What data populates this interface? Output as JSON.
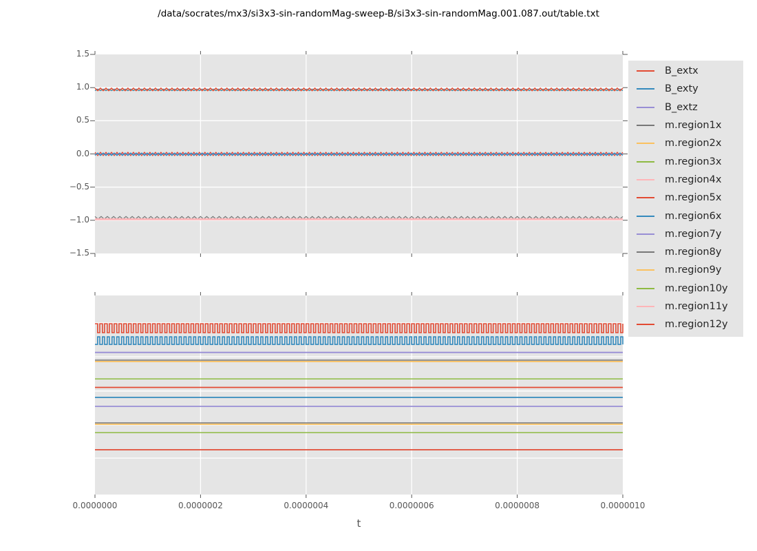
{
  "figure": {
    "title": "/data/socrates/mx3/si3x3-sin-randomMag-sweep-B/si3x3-sin-randomMag.001.087.out/table.txt",
    "background_color": "#ffffff",
    "axes_background_color": "#e5e5e5",
    "grid_color": "#ffffff",
    "tick_color": "#555555",
    "tick_label_color": "#555555",
    "legend_background_color": "#e5e5e5"
  },
  "axes": {
    "xlabel": "t",
    "x_tick_labels": [
      "0.0000000",
      "0.0000002",
      "0.0000004",
      "0.0000006",
      "0.0000008",
      "0.0000010"
    ],
    "top_y_tick_labels": [
      "1.5",
      "1.0",
      "0.5",
      "0.0",
      "−0.5",
      "−1.0",
      "−1.5"
    ],
    "bottom_y_tick_labels": []
  },
  "legend": {
    "entries": [
      {
        "label": "B_extx",
        "color": "#E24A33"
      },
      {
        "label": "B_exty",
        "color": "#348ABD"
      },
      {
        "label": "B_extz",
        "color": "#988ED5"
      },
      {
        "label": "m.region1x",
        "color": "#777777"
      },
      {
        "label": "m.region2x",
        "color": "#FBC15E"
      },
      {
        "label": "m.region3x",
        "color": "#8EBA42"
      },
      {
        "label": "m.region4x",
        "color": "#FFB5B8"
      },
      {
        "label": "m.region5x",
        "color": "#E24A33"
      },
      {
        "label": "m.region6x",
        "color": "#348ABD"
      },
      {
        "label": "m.region7y",
        "color": "#988ED5"
      },
      {
        "label": "m.region8y",
        "color": "#777777"
      },
      {
        "label": "m.region9y",
        "color": "#FBC15E"
      },
      {
        "label": "m.region10y",
        "color": "#8EBA42"
      },
      {
        "label": "m.region11y",
        "color": "#FFB5B8"
      },
      {
        "label": "m.region12y",
        "color": "#E24A33"
      }
    ]
  },
  "chart_data": [
    {
      "id": "top",
      "type": "line",
      "title": "",
      "xlabel": "",
      "ylabel": "",
      "xlim": [
        0,
        1e-06
      ],
      "ylim": [
        -1.5,
        1.5
      ],
      "xticks": [
        0,
        2e-07,
        4e-07,
        6e-07,
        8e-07,
        1e-06
      ],
      "yticks": [
        1.5,
        1.0,
        0.5,
        0.0,
        -0.5,
        -1.0,
        -1.5
      ],
      "grid": true,
      "x_gridlines": [
        2e-07,
        4e-07,
        6e-07,
        8e-07
      ],
      "y_gridlines": [
        1.0,
        0.5,
        0.0,
        -0.5,
        -1.0
      ],
      "y_units": "data",
      "series": [
        {
          "name": "B_extz near zero (flat)",
          "color": "#988ED5",
          "wave": "flat",
          "level": 0.0,
          "lw": 1.5
        },
        {
          "name": "red ripple near 0 (B-sweep)",
          "color": "#E24A33",
          "wave": "zigzag",
          "center": 0.0,
          "amp": 0.025,
          "cycles": 96,
          "phase": 0,
          "lw": 1.3
        },
        {
          "name": "B_exty blue ripple near 0",
          "color": "#348ABD",
          "wave": "zigzag",
          "center": -0.004,
          "amp": 0.018,
          "cycles": 96,
          "phase": 0.5,
          "lw": 1.5
        },
        {
          "name": "orange flat near +0.96",
          "color": "#FBC15E",
          "wave": "flat",
          "level": 0.963,
          "lw": 1.5
        },
        {
          "name": "blue ripple near +0.96",
          "color": "#348ABD",
          "wave": "zigzag",
          "center": 0.965,
          "amp": 0.012,
          "cycles": 96,
          "phase": 0.5,
          "lw": 1.2
        },
        {
          "name": "B_extx red ripple near +0.97",
          "color": "#E24A33",
          "wave": "zigzag",
          "center": 0.972,
          "amp": 0.02,
          "cycles": 96,
          "phase": 0,
          "lw": 1.4
        },
        {
          "name": "gray ripple peaks near -0.96",
          "color": "#777777",
          "wave": "zigzag",
          "center": -0.963,
          "amp": 0.02,
          "cycles": 85,
          "phase": 0,
          "lw": 1.2
        },
        {
          "name": "pink flat near -0.98",
          "color": "#FFB5B8",
          "wave": "flat",
          "level": -0.985,
          "lw": 2.8
        }
      ]
    },
    {
      "id": "bottom",
      "type": "line",
      "title": "",
      "xlabel": "t",
      "ylabel": "",
      "xlim": [
        0,
        1e-06
      ],
      "xticks": [
        0,
        2e-07,
        4e-07,
        6e-07,
        8e-07,
        1e-06
      ],
      "grid": true,
      "x_gridlines": [
        2e-07,
        4e-07,
        6e-07,
        8e-07
      ],
      "y_gridline_pos": [
        0.138,
        0.308,
        0.48,
        0.65,
        0.817
      ],
      "y_units": "fraction_of_axes_height_from_top (y-axis unlabeled in figure)",
      "series": [
        {
          "name": "red square wave",
          "color": "#E24A33",
          "wave": "square",
          "hi": 0.142,
          "lo": 0.187,
          "cycles": 110,
          "phase": 0,
          "lw": 1.6
        },
        {
          "name": "blue square wave",
          "color": "#348ABD",
          "wave": "square",
          "hi": 0.208,
          "lo": 0.246,
          "cycles": 110,
          "phase": 0.5,
          "lw": 1.6
        },
        {
          "name": "purple flat line 1",
          "color": "#988ED5",
          "wave": "flat",
          "level": 0.286,
          "lw": 1.8
        },
        {
          "name": "gray flat line 1",
          "color": "#777777",
          "wave": "flat",
          "level": 0.325,
          "lw": 1.5
        },
        {
          "name": "orange flat line 1",
          "color": "#FBC15E",
          "wave": "flat",
          "level": 0.332,
          "lw": 1.8
        },
        {
          "name": "green flat line 1",
          "color": "#8EBA42",
          "wave": "flat",
          "level": 0.419,
          "lw": 1.5
        },
        {
          "name": "red flat line 1",
          "color": "#E24A33",
          "wave": "flat",
          "level": 0.462,
          "lw": 1.8
        },
        {
          "name": "blue flat line 1",
          "color": "#348ABD",
          "wave": "flat",
          "level": 0.512,
          "lw": 1.8
        },
        {
          "name": "purple flat line 2",
          "color": "#988ED5",
          "wave": "flat",
          "level": 0.557,
          "lw": 1.8
        },
        {
          "name": "gray flat line 2",
          "color": "#777777",
          "wave": "flat",
          "level": 0.64,
          "lw": 1.5
        },
        {
          "name": "orange flat line 2",
          "color": "#FBC15E",
          "wave": "flat",
          "level": 0.647,
          "lw": 1.8
        },
        {
          "name": "green flat line 2",
          "color": "#8EBA42",
          "wave": "flat",
          "level": 0.689,
          "lw": 1.5
        },
        {
          "name": "red flat line 2",
          "color": "#E24A33",
          "wave": "flat",
          "level": 0.775,
          "lw": 1.8
        }
      ]
    }
  ]
}
